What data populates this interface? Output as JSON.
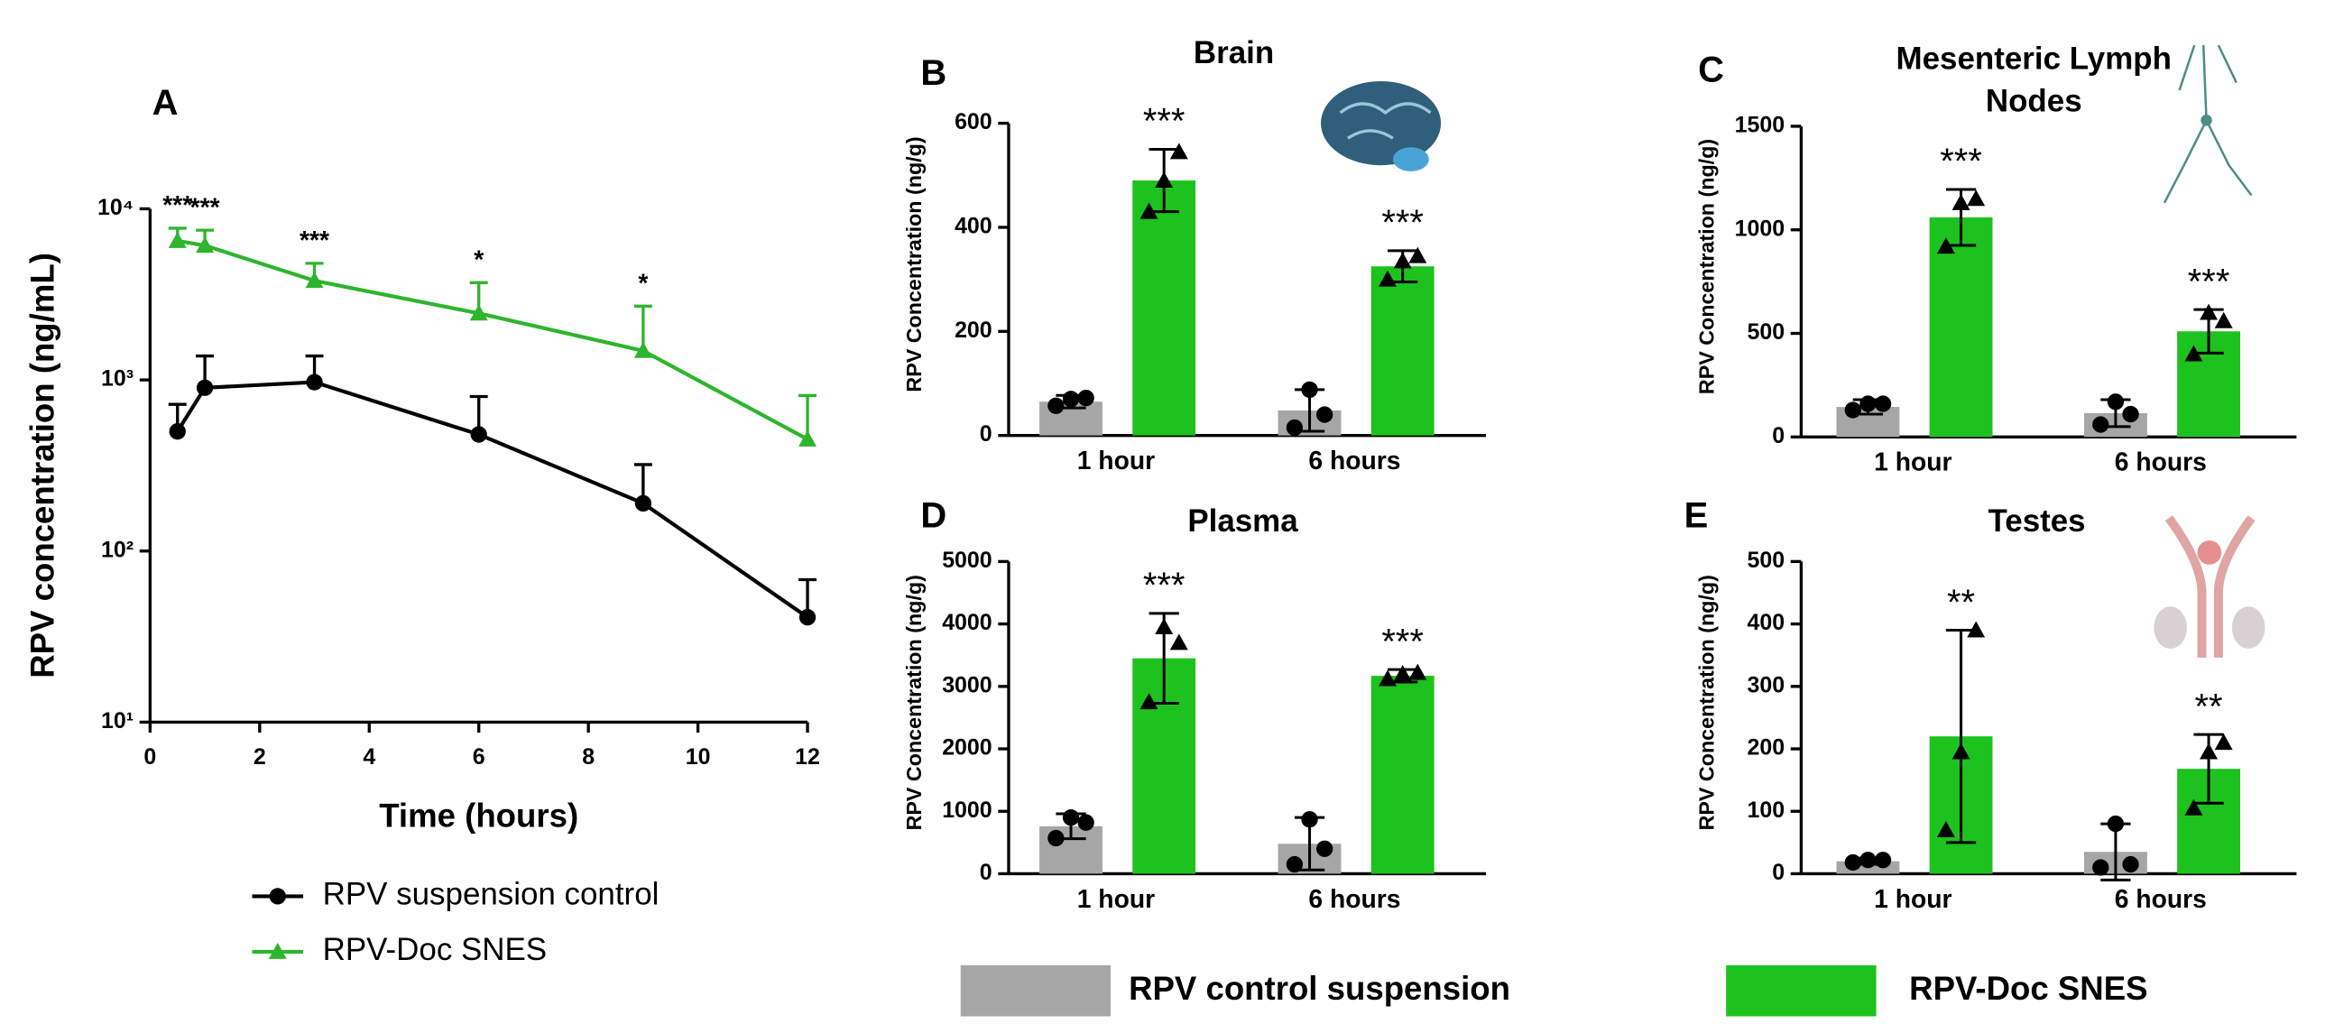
{
  "chart_data": [
    {
      "type": "line",
      "panel_label": "A",
      "xlabel": "Time (hours)",
      "ylabel": "RPV concentration (ng/mL)",
      "log_y": true,
      "xlim": [
        0,
        12
      ],
      "xticks": [
        0,
        2,
        4,
        6,
        8,
        10,
        12
      ],
      "ylim": [
        10,
        10000
      ],
      "yticks": [
        {
          "value": 10,
          "label": "10¹"
        },
        {
          "value": 100,
          "label": "10²"
        },
        {
          "value": 1000,
          "label": "10³"
        },
        {
          "value": 10000,
          "label": "10⁴"
        }
      ],
      "x": [
        0.5,
        1,
        3,
        6,
        9,
        12
      ],
      "series": [
        {
          "name": "RPV suspension control",
          "color": "#000000",
          "marker": "circle",
          "values": [
            500,
            900,
            970,
            480,
            190,
            41
          ],
          "errors": [
            220,
            480,
            410,
            320,
            130,
            27
          ]
        },
        {
          "name": "RPV-Doc SNES",
          "color": "#2db52d",
          "marker": "triangle",
          "values": [
            6500,
            6100,
            3800,
            2450,
            1480,
            450
          ],
          "errors": [
            1200,
            1400,
            1000,
            1250,
            1220,
            360
          ],
          "annotations": [
            "***",
            "***",
            "***",
            "*",
            "*",
            null
          ]
        }
      ]
    },
    {
      "type": "bar",
      "panel_label": "B",
      "title": "Brain",
      "ylabel": "RPV Concentration (ng/g)",
      "categories": [
        "1 hour",
        "6 hours"
      ],
      "ylim": [
        0,
        600
      ],
      "yticks": [
        0,
        200,
        400,
        600
      ],
      "series": [
        {
          "name": "RPV control suspension",
          "color": "#a6a6a6",
          "marker": "circle",
          "values": [
            65,
            48
          ],
          "errors": [
            12,
            40
          ],
          "points": [
            [
              57,
              70,
              72
            ],
            [
              15,
              88,
              40
            ]
          ]
        },
        {
          "name": "RPV-Doc SNES",
          "color": "#1ec21e",
          "marker": "triangle",
          "values": [
            490,
            325
          ],
          "errors": [
            60,
            30
          ],
          "points": [
            [
              430,
              490,
              545
            ],
            [
              300,
              335,
              345
            ]
          ],
          "annotations": [
            "***",
            "***"
          ]
        }
      ]
    },
    {
      "type": "bar",
      "panel_label": "C",
      "title": "Mesenteric Lymph Nodes",
      "ylabel": "RPV Concentration (ng/g)",
      "categories": [
        "1 hour",
        "6 hours"
      ],
      "ylim": [
        0,
        1500
      ],
      "yticks": [
        0,
        500,
        1000,
        1500
      ],
      "series": [
        {
          "color": "#a6a6a6",
          "marker": "circle",
          "values": [
            145,
            115
          ],
          "errors": [
            35,
            65
          ],
          "points": [
            [
              130,
              160,
              160
            ],
            [
              60,
              170,
              110
            ]
          ]
        },
        {
          "color": "#1ec21e",
          "marker": "triangle",
          "values": [
            1060,
            510
          ],
          "errors": [
            135,
            105
          ],
          "points": [
            [
              920,
              1130,
              1150
            ],
            [
              400,
              600,
              560
            ]
          ],
          "annotations": [
            "***",
            "***"
          ]
        }
      ]
    },
    {
      "type": "bar",
      "panel_label": "D",
      "title": "Plasma",
      "ylabel": "RPV Concentration (ng/g)",
      "categories": [
        "1 hour",
        "6 hours"
      ],
      "ylim": [
        0,
        5000
      ],
      "yticks": [
        0,
        1000,
        2000,
        3000,
        4000,
        5000
      ],
      "series": [
        {
          "color": "#a6a6a6",
          "marker": "circle",
          "values": [
            760,
            480
          ],
          "errors": [
            200,
            420
          ],
          "points": [
            [
              570,
              900,
              820
            ],
            [
              150,
              870,
              400
            ]
          ]
        },
        {
          "color": "#1ec21e",
          "marker": "triangle",
          "values": [
            3450,
            3170
          ],
          "errors": [
            720,
            100
          ],
          "points": [
            [
              2750,
              3950,
              3700
            ],
            [
              3120,
              3200,
              3220
            ]
          ],
          "annotations": [
            "***",
            "***"
          ]
        }
      ]
    },
    {
      "type": "bar",
      "panel_label": "E",
      "title": "Testes",
      "ylabel": "RPV Concentration (ng/g)",
      "categories": [
        "1 hour",
        "6 hours"
      ],
      "ylim": [
        0,
        500
      ],
      "yticks": [
        0,
        100,
        200,
        300,
        400,
        500
      ],
      "series": [
        {
          "color": "#a6a6a6",
          "marker": "circle",
          "values": [
            20,
            35
          ],
          "errors": [
            5,
            45
          ],
          "points": [
            [
              18,
              22,
              22
            ],
            [
              10,
              80,
              15
            ]
          ]
        },
        {
          "color": "#1ec21e",
          "marker": "triangle",
          "values": [
            220,
            168
          ],
          "errors": [
            170,
            55
          ],
          "points": [
            [
              70,
              195,
              390
            ],
            [
              105,
              195,
              210
            ]
          ],
          "annotations": [
            "**",
            "**"
          ]
        }
      ]
    }
  ]
}
